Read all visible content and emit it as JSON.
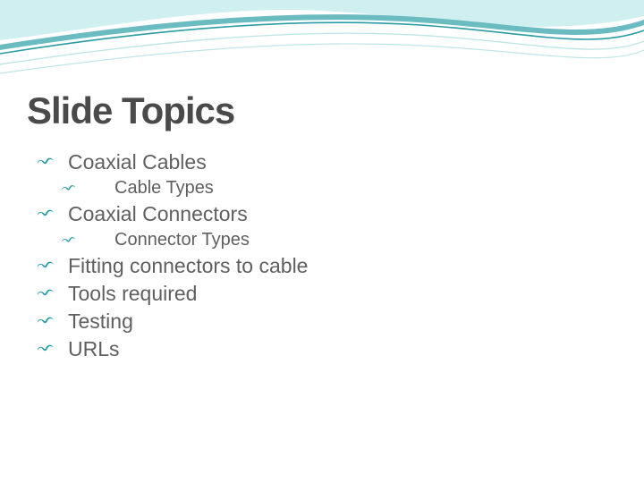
{
  "colors": {
    "title": "#4a4a4a",
    "body_text": "#5f5f5f",
    "bullet_icon": "#2a9ca4",
    "wave_fill_light": "#cfeff0",
    "wave_fill_mid": "#6abcc1",
    "wave_stroke_dark": "#2a9ca4",
    "wave_stroke_light": "#bfe6e8",
    "background": "#ffffff"
  },
  "typography": {
    "title_fontsize": 42,
    "lvl1_fontsize": 23,
    "lvl2_fontsize": 20,
    "bullet_icon_size_lvl1": 22,
    "bullet_icon_size_lvl2": 18
  },
  "title": "Slide Topics",
  "items": [
    {
      "level": 1,
      "text": "Coaxial Cables"
    },
    {
      "level": 2,
      "text": "Cable Types"
    },
    {
      "level": 1,
      "text": "Coaxial Connectors"
    },
    {
      "level": 2,
      "text": "Connector Types"
    },
    {
      "level": 1,
      "text": "Fitting connectors to cable"
    },
    {
      "level": 1,
      "text": "Tools required"
    },
    {
      "level": 1,
      "text": "Testing"
    },
    {
      "level": 1,
      "text": "URLs"
    }
  ]
}
